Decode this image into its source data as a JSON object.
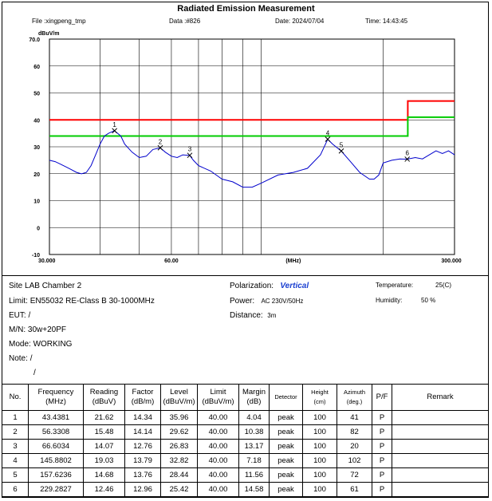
{
  "header": {
    "title": "Radiated Emission Measurement",
    "file": "File :xingpeng_tmp",
    "data": "Data :#826",
    "date": "Date: 2024/07/04",
    "time": "Time: 14:43:45"
  },
  "chart_data": {
    "type": "line",
    "ylabel": "dBuV/m",
    "y_ticks": [
      "70.0",
      "60",
      "50",
      "40",
      "30",
      "20",
      "10",
      "0",
      "-10"
    ],
    "x_ticks": [
      "30.000",
      "60.00",
      "(MHz)",
      "300.000"
    ],
    "xlim": [
      30,
      300
    ],
    "ylim": [
      -10,
      70
    ],
    "x_scale": "log",
    "series": [],
    "limit_lines": [
      {
        "color": "#ff0000",
        "points": [
          [
            30,
            40
          ],
          [
            230,
            40
          ],
          [
            230,
            47
          ],
          [
            300,
            47
          ]
        ]
      },
      {
        "color": "#00cc00",
        "points": [
          [
            30,
            34
          ],
          [
            230,
            34
          ],
          [
            230,
            41
          ],
          [
            300,
            41
          ]
        ]
      }
    ],
    "trace": {
      "color": "#0000cc",
      "x": [
        30,
        31,
        32,
        33,
        34,
        35,
        36,
        37,
        38,
        39,
        40,
        41,
        42,
        43.4,
        45,
        46,
        48,
        50,
        52,
        54,
        56.3,
        58,
        60,
        62,
        64,
        66.6,
        68,
        70,
        75,
        80,
        85,
        90,
        95,
        100,
        110,
        120,
        130,
        140,
        145.9,
        150,
        157.6,
        165,
        175,
        185,
        190,
        195,
        200,
        210,
        220,
        229.3,
        240,
        250,
        260,
        270,
        280,
        290,
        300
      ],
      "y": [
        25,
        24.5,
        23.5,
        22.5,
        21.5,
        20.5,
        20,
        20.5,
        23,
        27,
        31,
        34,
        35,
        36,
        34,
        31,
        28,
        26,
        26.5,
        29,
        29.6,
        28,
        26.5,
        26,
        27,
        26.8,
        25,
        23,
        21,
        18,
        17,
        15,
        15,
        16.5,
        19.5,
        20.5,
        22,
        27,
        32.8,
        31,
        28.4,
        25,
        20.5,
        18,
        18,
        19.5,
        24,
        25,
        25.5,
        25.4,
        26,
        25.5,
        27,
        28.5,
        27.5,
        28.5,
        27
      ]
    },
    "markers": [
      {
        "label": "1",
        "x": 43.4381,
        "y": 35.96
      },
      {
        "label": "2",
        "x": 56.3308,
        "y": 29.62
      },
      {
        "label": "3",
        "x": 66.6034,
        "y": 26.83
      },
      {
        "label": "4",
        "x": 145.8802,
        "y": 32.82
      },
      {
        "label": "5",
        "x": 157.6236,
        "y": 28.44
      },
      {
        "label": "6",
        "x": 229.2827,
        "y": 25.42
      }
    ],
    "grid_lines_x": [
      40,
      50,
      60,
      70,
      80,
      90,
      100,
      200
    ],
    "grid": true
  },
  "info": {
    "site_label": "Site",
    "site": "LAB Chamber 2",
    "limit_label": "Limit:",
    "limit": "EN55032 RE-Class B 30-1000MHz",
    "eut_label": "EUT:",
    "eut": "/",
    "mn_label": "M/N:",
    "mn": "30w+20PF",
    "mode_label": "Mode:",
    "mode": "WORKING",
    "note_label": "Note:",
    "note1": "/",
    "note2": "/",
    "polarization_label": "Polarization:",
    "polarization": "Vertical",
    "power_label": "Power:",
    "power": "AC 230V/50Hz",
    "distance_label": "Distance:",
    "distance": "3m",
    "temperature_label": "Temperature:",
    "temperature": "25(C)",
    "humidity_label": "Humidity:",
    "humidity": "50 %"
  },
  "table": {
    "headers": [
      "No.",
      "Frequency\n(MHz)",
      "Reading\n(dBuV)",
      "Factor\n(dB/m)",
      "Level\n(dBuV/m)",
      "Limit\n(dBuV/m)",
      "Margin\n(dB)",
      "Detector",
      "Height\n(cm)",
      "Azimuth\n(deg.)",
      "P/F",
      "Remark"
    ],
    "rows": [
      [
        "1",
        "43.4381",
        "21.62",
        "14.34",
        "35.96",
        "40.00",
        "4.04",
        "peak",
        "100",
        "41",
        "P",
        ""
      ],
      [
        "2",
        "56.3308",
        "15.48",
        "14.14",
        "29.62",
        "40.00",
        "10.38",
        "peak",
        "100",
        "82",
        "P",
        ""
      ],
      [
        "3",
        "66.6034",
        "14.07",
        "12.76",
        "26.83",
        "40.00",
        "13.17",
        "peak",
        "100",
        "20",
        "P",
        ""
      ],
      [
        "4",
        "145.8802",
        "19.03",
        "13.79",
        "32.82",
        "40.00",
        "7.18",
        "peak",
        "100",
        "102",
        "P",
        ""
      ],
      [
        "5",
        "157.6236",
        "14.68",
        "13.76",
        "28.44",
        "40.00",
        "11.56",
        "peak",
        "100",
        "72",
        "P",
        ""
      ],
      [
        "6",
        "229.2827",
        "12.46",
        "12.96",
        "25.42",
        "40.00",
        "14.58",
        "peak",
        "100",
        "61",
        "P",
        ""
      ]
    ]
  }
}
